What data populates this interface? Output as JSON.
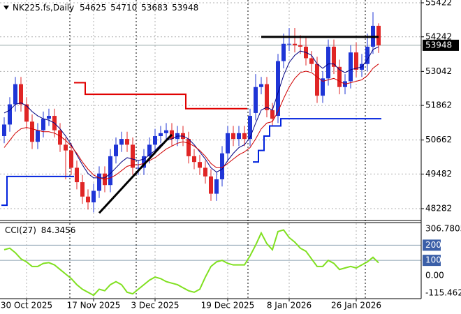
{
  "chart_data": {
    "type": "candlestick",
    "symbol": "NK225.fs,Daily",
    "header_ohlc": [
      54625,
      54710,
      53683,
      53948
    ],
    "last_price": 53948,
    "categories": [
      null,
      null,
      null,
      null,
      "30 Oct 2025",
      null,
      null,
      null,
      null,
      null,
      null,
      null,
      null,
      null,
      null,
      null,
      "17 Nov 2025",
      null,
      null,
      null,
      null,
      null,
      null,
      null,
      null,
      null,
      null,
      "3 Dec 2025",
      null,
      null,
      null,
      null,
      null,
      null,
      null,
      null,
      null,
      null,
      null,
      null,
      "19 Dec 2025",
      null,
      null,
      null,
      null,
      null,
      null,
      null,
      null,
      null,
      null,
      "8 Jan 2026",
      null,
      null,
      null,
      null,
      null,
      null,
      null,
      null,
      null,
      null,
      null,
      "26 Jan 2026",
      null,
      null,
      null,
      null
    ],
    "open": [
      50800,
      51200,
      51900,
      52600,
      51900,
      51300,
      50600,
      51000,
      51400,
      51500,
      51000,
      50500,
      50300,
      49700,
      49200,
      48700,
      48500,
      48900,
      49500,
      49100,
      50100,
      50500,
      50700,
      50500,
      49700,
      49700,
      50100,
      50500,
      50800,
      50900,
      51000,
      50700,
      50900,
      50700,
      50100,
      49900,
      49700,
      49400,
      48800,
      49300,
      50200,
      50900,
      50700,
      50900,
      50700,
      51600,
      52500,
      52600,
      51700,
      51500,
      53400,
      54000,
      54000,
      53950,
      53900,
      53500,
      53300,
      52200,
      52800,
      53900,
      53200,
      52500,
      52700,
      53700,
      53100,
      53300,
      53900,
      54625
    ],
    "high": [
      51450,
      52150,
      52850,
      52850,
      52150,
      51550,
      51250,
      51650,
      51750,
      51750,
      51250,
      50750,
      50550,
      49950,
      49450,
      48950,
      49150,
      49750,
      49750,
      50350,
      50750,
      50950,
      50950,
      50750,
      49950,
      50350,
      50750,
      51050,
      51150,
      51250,
      51250,
      51150,
      51150,
      50950,
      50350,
      50150,
      49950,
      49650,
      49550,
      50450,
      51150,
      51150,
      51150,
      51150,
      51750,
      52950,
      52850,
      52850,
      51950,
      53650,
      54350,
      54550,
      54550,
      54300,
      54200,
      53750,
      53550,
      53050,
      54150,
      54150,
      53450,
      52950,
      53950,
      54050,
      53650,
      54350,
      55100,
      54710
    ],
    "low": [
      50550,
      50950,
      51650,
      51650,
      51050,
      50350,
      50350,
      50750,
      51150,
      50750,
      50250,
      49300,
      49450,
      48950,
      48450,
      48250,
      48150,
      48650,
      48850,
      48850,
      49850,
      50250,
      50250,
      49450,
      49450,
      49450,
      49850,
      50250,
      50550,
      50650,
      50450,
      50450,
      50450,
      49850,
      49650,
      49450,
      49150,
      48550,
      48550,
      49050,
      49950,
      50450,
      50450,
      50450,
      50450,
      51350,
      52250,
      51450,
      51150,
      51250,
      53150,
      53750,
      53700,
      53650,
      53250,
      53050,
      51950,
      51950,
      52550,
      52950,
      52250,
      52250,
      52450,
      52850,
      52850,
      53050,
      53650,
      53683
    ],
    "close": [
      51200,
      51900,
      52600,
      51900,
      51300,
      50600,
      51000,
      51400,
      51500,
      51000,
      50500,
      50300,
      49700,
      49200,
      48700,
      48500,
      48900,
      49500,
      49100,
      50100,
      50500,
      50700,
      50500,
      49700,
      49700,
      50100,
      50500,
      50800,
      50900,
      51000,
      50700,
      50900,
      50700,
      50100,
      49900,
      49700,
      49400,
      48800,
      49300,
      50200,
      50900,
      50700,
      50900,
      50700,
      51500,
      52500,
      52600,
      51700,
      51400,
      53400,
      54000,
      54000,
      53950,
      53900,
      53500,
      53300,
      52200,
      52800,
      53900,
      53200,
      52500,
      52700,
      53700,
      53100,
      53300,
      53900,
      54625,
      53948
    ],
    "up_color": "#1f35d6",
    "down_color": "#e02525",
    "lines": [
      {
        "color": "#000080",
        "width": 1,
        "values": [
          51600,
          51700,
          51900,
          51950,
          51850,
          51650,
          51500,
          51400,
          51350,
          51250,
          51050,
          50800,
          50500,
          50150,
          49800,
          49500,
          49350,
          49350,
          49350,
          49500,
          49700,
          49900,
          50050,
          50000,
          49950,
          50000,
          50150,
          50300,
          50500,
          50650,
          50700,
          50800,
          50800,
          50700,
          50500,
          50250,
          50000,
          49700,
          49550,
          49650,
          49950,
          50200,
          50400,
          50500,
          50750,
          51250,
          51700,
          51800,
          51700,
          52300,
          52900,
          53350,
          53600,
          53750,
          53700,
          53600,
          53300,
          53150,
          53300,
          53300,
          53100,
          53000,
          53100,
          53150,
          53200,
          53450,
          53800,
          53900
        ]
      },
      {
        "color": "#d00000",
        "width": 1,
        "values": [
          50400,
          50650,
          50900,
          51050,
          51100,
          51050,
          51000,
          50950,
          50950,
          50900,
          50800,
          50650,
          50450,
          50200,
          49900,
          49650,
          49450,
          49350,
          49300,
          49350,
          49450,
          49600,
          49750,
          49800,
          49800,
          49850,
          49950,
          50050,
          50200,
          50350,
          50450,
          50550,
          50600,
          50550,
          50450,
          50300,
          50100,
          49850,
          49700,
          49700,
          49850,
          50000,
          50150,
          50250,
          50400,
          50700,
          51050,
          51250,
          51300,
          51650,
          52100,
          52500,
          52800,
          53000,
          53050,
          53000,
          52850,
          52700,
          52750,
          52800,
          52700,
          52600,
          52650,
          52700,
          52750,
          52900,
          53150,
          53300
        ]
      },
      {
        "color": "#0022dd",
        "width": 2,
        "step": true,
        "values": [
          48400,
          49400,
          49400,
          49400,
          49400,
          49400,
          49400,
          49400,
          49400,
          49400,
          49400,
          49400,
          49400,
          null,
          null,
          null,
          null,
          null,
          null,
          null,
          null,
          null,
          null,
          null,
          null,
          null,
          null,
          null,
          null,
          null,
          null,
          null,
          null,
          null,
          null,
          null,
          null,
          null,
          null,
          null,
          null,
          null,
          null,
          null,
          null,
          49900,
          50300,
          50800,
          51150,
          51150,
          51400,
          51400,
          51400,
          51400,
          51400,
          51400,
          51400,
          51400,
          51400,
          51400,
          51400,
          51400,
          51400,
          51400,
          51400,
          51400,
          51400,
          51400
        ]
      },
      {
        "color": "#e00000",
        "width": 2,
        "step": true,
        "values": [
          null,
          null,
          null,
          null,
          null,
          null,
          null,
          null,
          null,
          null,
          null,
          null,
          null,
          52650,
          52650,
          52250,
          52250,
          52250,
          52250,
          52250,
          52250,
          52250,
          52250,
          52250,
          52250,
          52250,
          52250,
          52250,
          52250,
          52250,
          52250,
          52250,
          52250,
          51750,
          51750,
          51750,
          51750,
          51750,
          51750,
          51750,
          51750,
          51750,
          51750,
          51750,
          null,
          null,
          null,
          null,
          null,
          null,
          null,
          null,
          null,
          null,
          null,
          null,
          null,
          null,
          null,
          null,
          null,
          null,
          null,
          null,
          null,
          null,
          null,
          null
        ]
      },
      {
        "color": "#000000",
        "width": 3,
        "values": [
          null,
          null,
          null,
          null,
          null,
          null,
          null,
          null,
          null,
          null,
          null,
          null,
          null,
          null,
          null,
          null,
          null,
          48130,
          48340,
          48550,
          48760,
          48970,
          49180,
          49390,
          49600,
          49810,
          50020,
          50230,
          50440,
          50650,
          50850,
          null,
          null,
          null,
          null,
          null,
          null,
          null,
          null,
          null,
          null,
          null,
          null,
          null,
          null,
          null,
          null,
          null,
          null,
          null,
          null,
          null,
          null,
          null,
          null,
          null,
          null,
          null,
          null,
          null,
          null,
          null,
          null,
          null,
          null,
          null,
          null,
          null
        ]
      },
      {
        "color": "#000000",
        "width": 3,
        "values": [
          null,
          null,
          null,
          null,
          null,
          null,
          null,
          null,
          null,
          null,
          null,
          null,
          null,
          null,
          null,
          null,
          null,
          null,
          null,
          null,
          null,
          null,
          null,
          null,
          null,
          null,
          null,
          null,
          null,
          null,
          null,
          null,
          null,
          null,
          null,
          null,
          null,
          null,
          null,
          null,
          null,
          null,
          null,
          null,
          null,
          null,
          54240,
          54240,
          54240,
          54240,
          54240,
          54240,
          54240,
          54240,
          54240,
          54240,
          54240,
          54240,
          54240,
          54240,
          54240,
          54240,
          54240,
          54240,
          54240,
          54240,
          54240,
          54240
        ]
      }
    ],
    "ylim": [
      47895,
      55519
    ],
    "yticks": [
      55422,
      54242,
      53042,
      51862,
      50662,
      49482,
      48282
    ],
    "grid": true,
    "cci": {
      "label": "CCI(27)",
      "current": 84.3456,
      "color": "#80e020",
      "values": [
        170,
        180,
        150,
        110,
        90,
        60,
        60,
        80,
        85,
        70,
        40,
        10,
        -20,
        -60,
        -90,
        -110,
        -130,
        -90,
        -100,
        -60,
        -40,
        -60,
        -110,
        -120,
        -90,
        -60,
        -30,
        -10,
        -20,
        -40,
        -50,
        -60,
        -80,
        -100,
        -110,
        -90,
        -10,
        60,
        90,
        100,
        80,
        70,
        70,
        70,
        130,
        200,
        280,
        210,
        170,
        290,
        300,
        250,
        220,
        180,
        160,
        110,
        60,
        60,
        100,
        80,
        40,
        50,
        60,
        50,
        70,
        90,
        120,
        84.3456
      ],
      "ylim": [
        -152,
        344
      ],
      "yticks": [
        306.7805,
        200,
        100,
        {
          "value": 0,
          "label": "0.00"
        },
        -115.4622
      ],
      "level_ticks": [
        200,
        100
      ]
    }
  }
}
